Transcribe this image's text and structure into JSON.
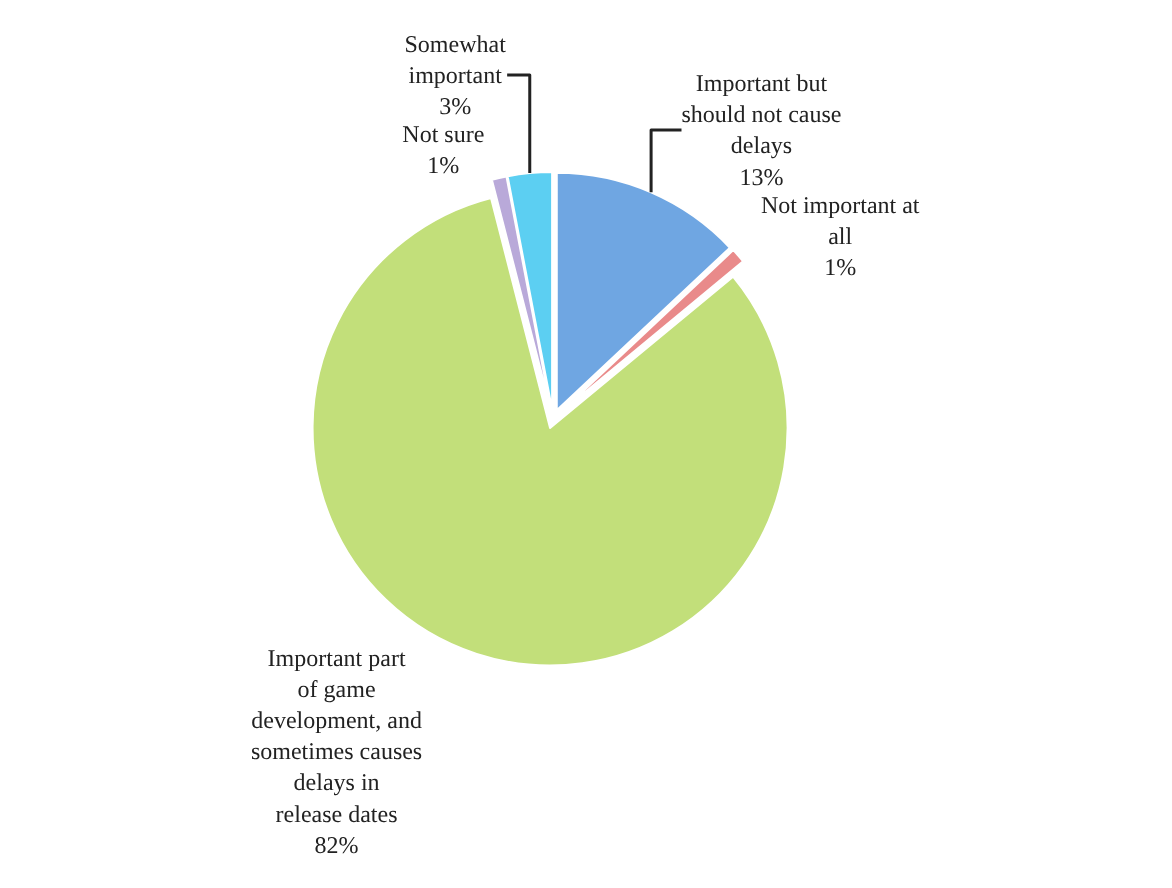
{
  "chart_data": {
    "type": "pie",
    "categories": [
      "Important but should not cause delays",
      "Not important at all",
      "Important part of game development, and sometimes causes delays in release dates",
      "Not sure",
      "Somewhat important"
    ],
    "values": [
      13,
      1,
      82,
      1,
      3
    ],
    "value_labels": [
      "13%",
      "1%",
      "82%",
      "1%",
      "3%"
    ],
    "colors": [
      "#6fa6e2",
      "#e98a8a",
      "#c2df7a",
      "#b9a9d9",
      "#5ccff2"
    ],
    "legend": false
  }
}
